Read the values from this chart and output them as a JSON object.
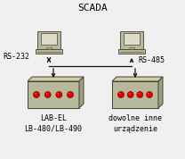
{
  "bg_color": "#f0f0f0",
  "title": "SCADA",
  "box_color": "#b8b89a",
  "box_edge": "#444433",
  "box_top_color": "#d0d0b0",
  "box_right_color": "#9898808",
  "led_color": "#dd0000",
  "led_edge": "#880000",
  "screen_color": "#dcdcc8",
  "monitor_body_color": "#b8b89a",
  "monitor_edge": "#444433",
  "label_lb": "LAB-EL\nLB-480/LB-490",
  "label_dev": "dowolne inne\nurządzenie",
  "label_rs232": "RS-232",
  "label_rs485": "RS-485",
  "arrow_color": "#111111",
  "font_size_title": 8,
  "font_size_label": 6,
  "font_size_rs": 6
}
